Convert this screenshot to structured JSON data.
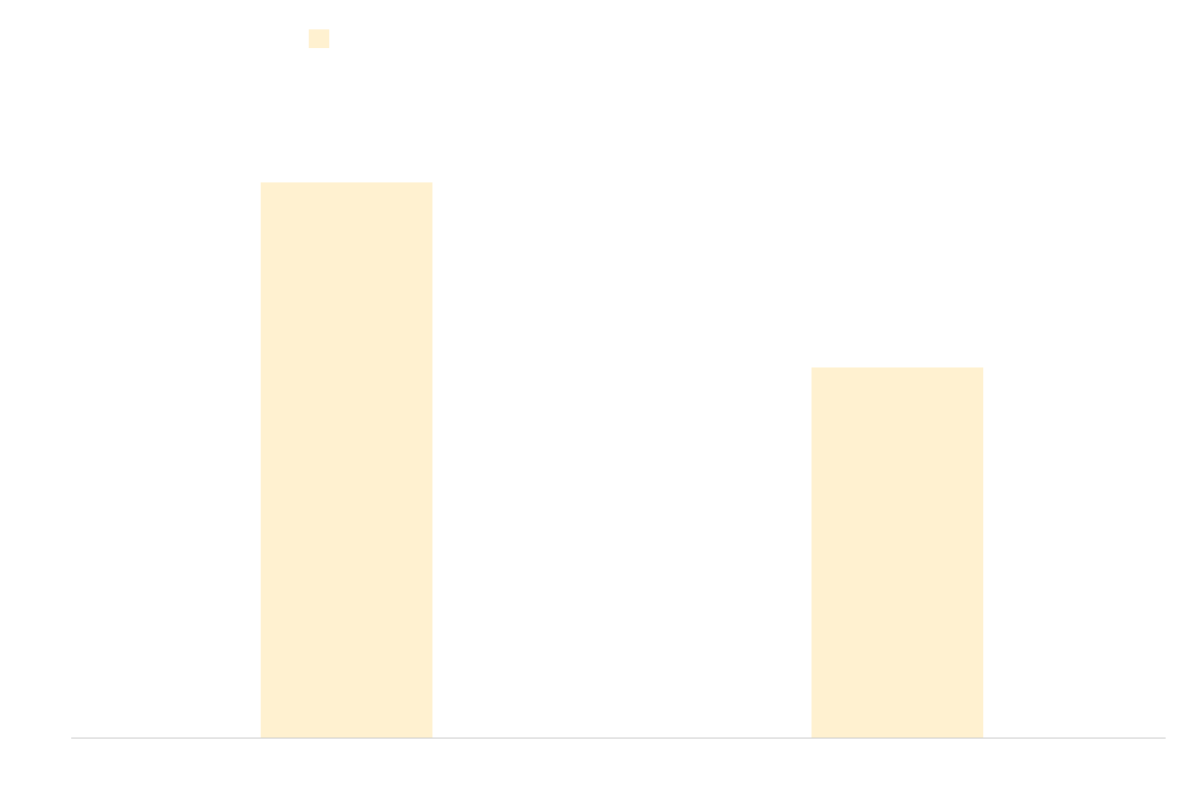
{
  "chart_data": {
    "type": "bar",
    "categories": [
      "",
      ""
    ],
    "series": [
      {
        "values": [
          100,
          66.7
        ],
        "color": "#fff1d0"
      }
    ],
    "ylim": [
      0,
      100
    ],
    "grid": false,
    "legend": "top-left",
    "axis_color": "#c8c8c8"
  }
}
